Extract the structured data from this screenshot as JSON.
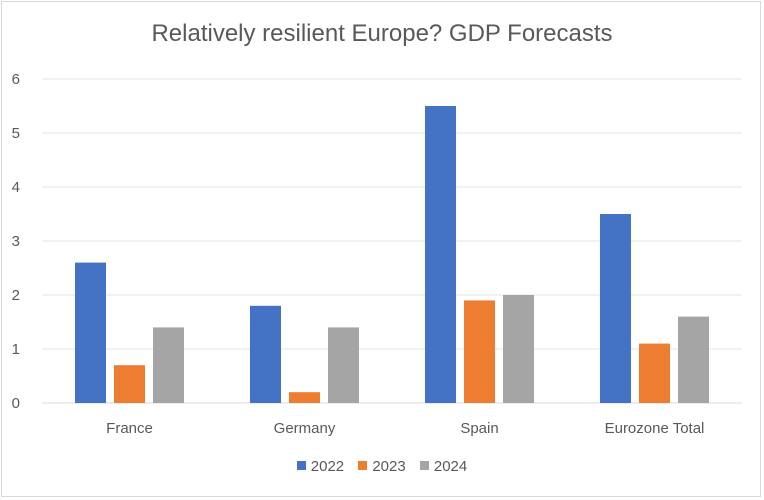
{
  "chart_data": {
    "type": "bar",
    "title": "Relatively resilient Europe? GDP Forecasts",
    "categories": [
      "France",
      "Germany",
      "Spain",
      "Eurozone Total"
    ],
    "series": [
      {
        "name": "2022",
        "values": [
          2.6,
          1.8,
          5.5,
          3.5
        ],
        "color": "#4472c4"
      },
      {
        "name": "2023",
        "values": [
          0.7,
          0.2,
          1.9,
          1.1
        ],
        "color": "#ed7d31"
      },
      {
        "name": "2024",
        "values": [
          1.4,
          1.4,
          2.0,
          1.6
        ],
        "color": "#a5a5a5"
      }
    ],
    "yticks": [
      "0",
      "1",
      "2",
      "3",
      "4",
      "5",
      "6"
    ],
    "ylim": [
      0,
      6
    ],
    "xlabel": "",
    "ylabel": "",
    "grid": true,
    "legend_position": "bottom"
  }
}
